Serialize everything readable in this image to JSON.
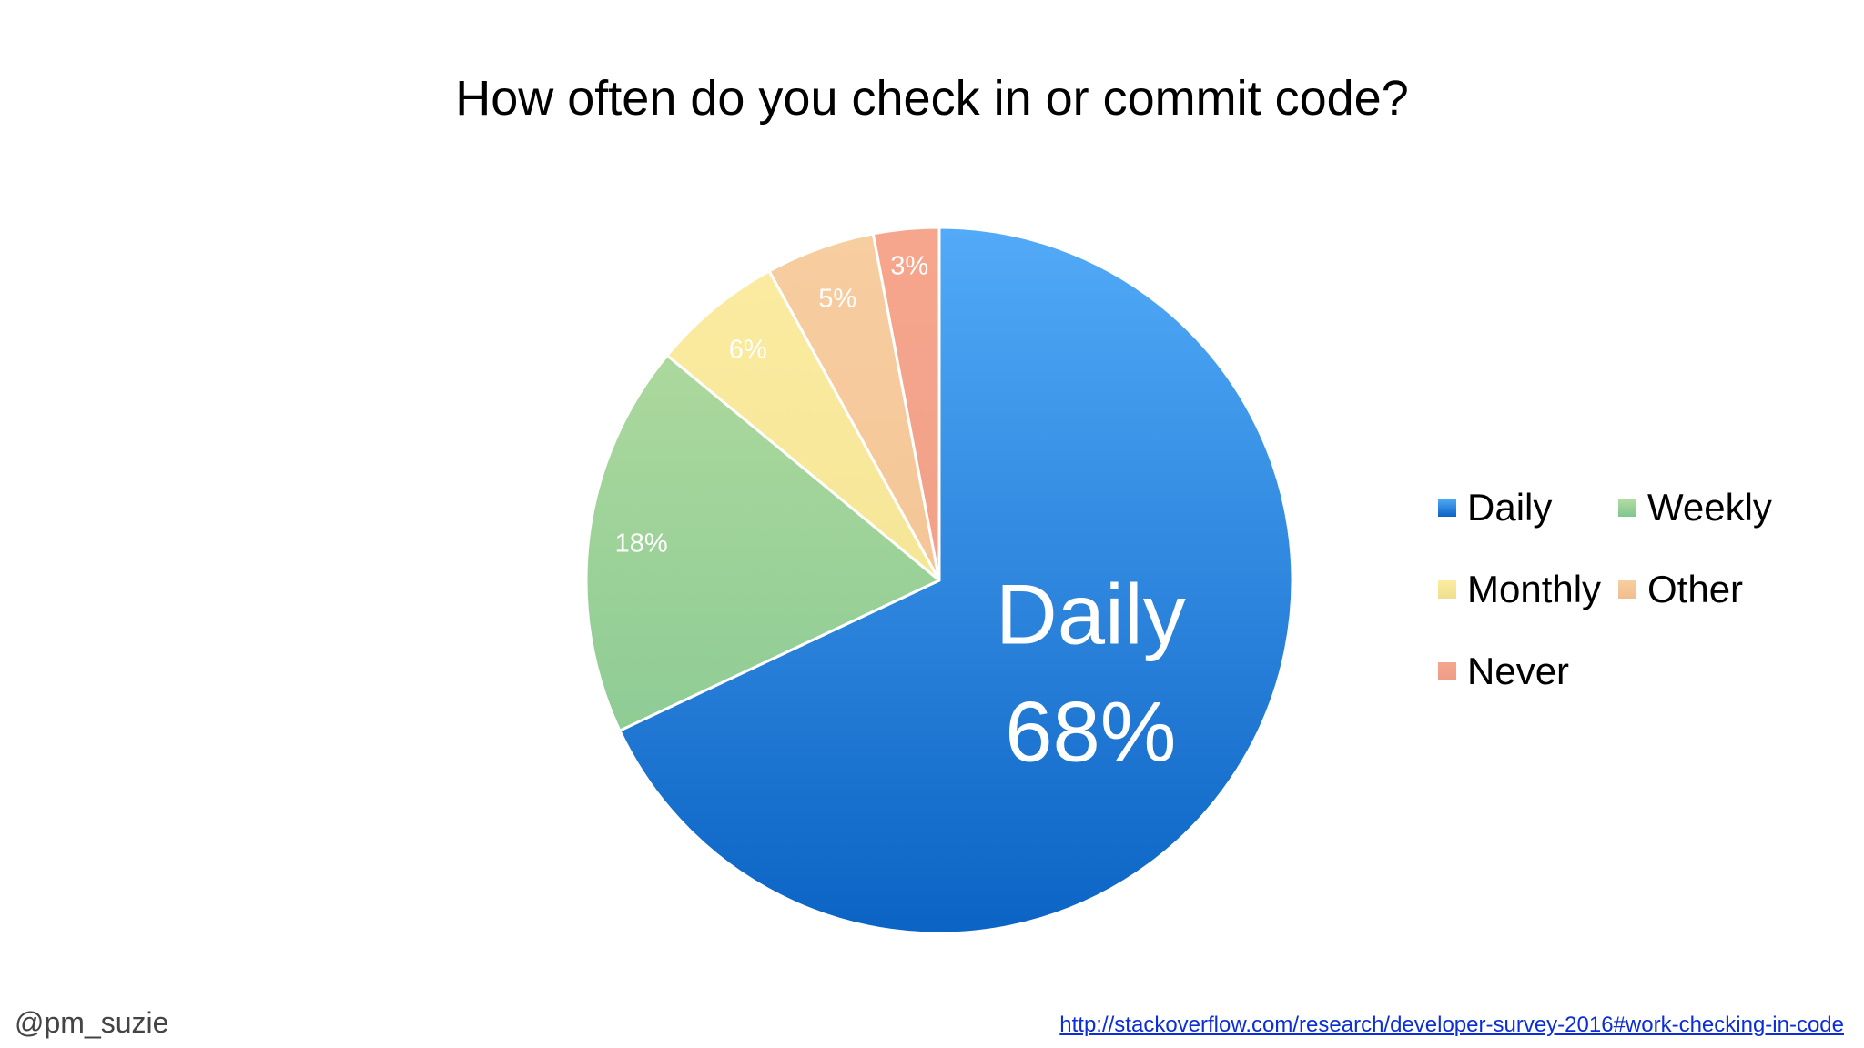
{
  "chart_data": {
    "type": "pie",
    "title": "How often do you check in or commit code?",
    "categories": [
      "Daily",
      "Weekly",
      "Monthly",
      "Other",
      "Never"
    ],
    "values": [
      68,
      18,
      6,
      5,
      3
    ],
    "labels": [
      "68%",
      "18%",
      "6%",
      "5%",
      "3%"
    ],
    "highlight": {
      "category": "Daily",
      "label": "68%"
    },
    "colors": {
      "Daily": {
        "top": "#52aaf8",
        "bottom": "#0b63c4",
        "legend": "#2f7fdc"
      },
      "Weekly": {
        "top": "#b6dc9f",
        "bottom": "#7ec691",
        "legend": "#8fcf93"
      },
      "Monthly": {
        "top": "#fbeca2",
        "bottom": "#efdf8c",
        "legend": "#f3e38f"
      },
      "Other": {
        "top": "#f7cea1",
        "bottom": "#f2bd8c",
        "legend": "#f4c190"
      },
      "Never": {
        "top": "#f6a68d",
        "bottom": "#ee9c86",
        "legend": "#f09a86"
      }
    },
    "legend": {
      "placement": "right",
      "columns": 2
    },
    "start_angle": "12 o'clock",
    "direction": "clockwise"
  },
  "footer": {
    "handle": "@pm_suzie",
    "source_url": "http://stackoverflow.com/research/developer-survey-2016#work-checking-in-code"
  }
}
